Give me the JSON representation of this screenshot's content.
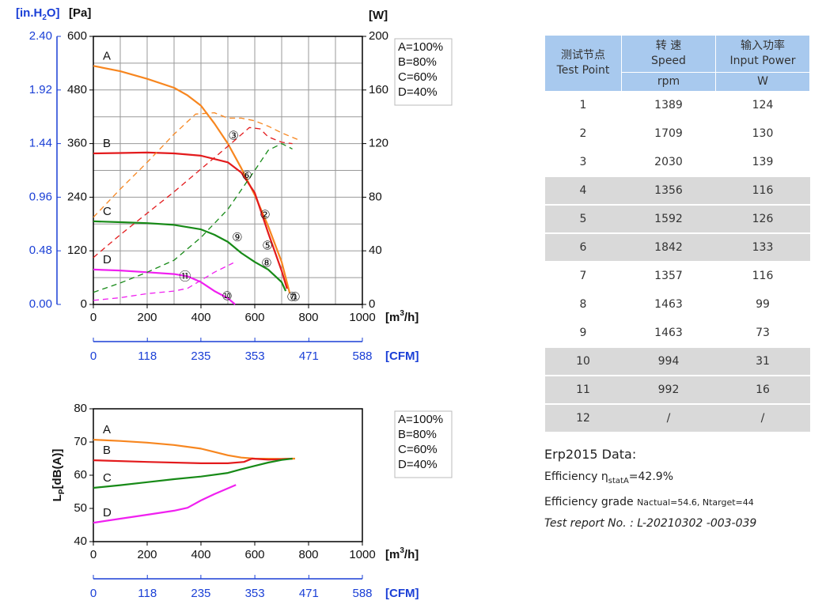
{
  "chart_data": [
    {
      "type": "line",
      "x_label": [
        "[m",
        "3",
        "/h]"
      ],
      "xlim": [
        0,
        1000
      ],
      "xticks": [
        0,
        200,
        400,
        600,
        800,
        1000
      ],
      "x2_label": "[CFM]",
      "x2lim": [
        0,
        588
      ],
      "x2ticks": [
        0,
        118,
        235,
        353,
        471,
        588
      ],
      "y_label": "[Pa]",
      "ylim": [
        0,
        600
      ],
      "yticks": [
        0,
        120,
        240,
        360,
        480,
        600
      ],
      "y3_label": [
        "[in.H",
        "2",
        "O]"
      ],
      "y3lim": [
        0,
        2.4
      ],
      "y3ticks": [
        {
          "value": 0,
          "label": "0.00"
        },
        0.48,
        0.96,
        1.44,
        1.92,
        {
          "value": 2.4,
          "label": "2.40"
        }
      ],
      "y2_label": "[W]",
      "y2lim": [
        0,
        200
      ],
      "y2ticks": [
        0,
        40,
        80,
        120,
        160,
        200
      ],
      "grid": true,
      "legend": "right",
      "series": [
        {
          "name": "A=100%",
          "label": "A",
          "color": "#f7861f",
          "x": [
            0,
            100,
            200,
            300,
            350,
            400,
            450,
            500,
            550,
            600,
            650,
            700,
            730
          ],
          "values": [
            534,
            522,
            505,
            485,
            468,
            445,
            405,
            360,
            305,
            245,
            175,
            95,
            25
          ]
        },
        {
          "name": "B=80%",
          "label": "B",
          "color": "#e31a1c",
          "x": [
            0,
            100,
            200,
            300,
            400,
            500,
            550,
            600,
            650,
            700,
            720
          ],
          "values": [
            338,
            339,
            340,
            338,
            333,
            318,
            295,
            250,
            160,
            75,
            35
          ]
        },
        {
          "name": "C=60%",
          "label": "C",
          "color": "#178a17",
          "x": [
            0,
            100,
            200,
            300,
            400,
            450,
            500,
            550,
            600,
            650,
            700,
            715
          ],
          "values": [
            186,
            184,
            182,
            178,
            168,
            156,
            140,
            115,
            95,
            78,
            50,
            30
          ]
        },
        {
          "name": "D=40%",
          "label": "D",
          "color": "#f020f0",
          "x": [
            0,
            100,
            200,
            300,
            350,
            400,
            450,
            500,
            527
          ],
          "values": [
            78,
            76,
            72,
            68,
            63,
            50,
            30,
            14,
            0
          ]
        },
        {
          "axis": "y2",
          "dashed": true,
          "color": "#f7861f",
          "x": [
            0,
            100,
            200,
            300,
            380,
            450,
            500,
            550,
            600,
            650,
            700,
            760
          ],
          "values": [
            65,
            86,
            106,
            127,
            142,
            143,
            139,
            139,
            137,
            133,
            128,
            123
          ]
        },
        {
          "axis": "y2",
          "dashed": true,
          "color": "#e31a1c",
          "x": [
            0,
            100,
            200,
            300,
            400,
            500,
            580,
            620,
            650,
            700,
            740
          ],
          "values": [
            35,
            52,
            68,
            84,
            101,
            118,
            132,
            131,
            125,
            121,
            120
          ]
        },
        {
          "axis": "y2",
          "dashed": true,
          "color": "#178a17",
          "x": [
            0,
            100,
            200,
            300,
            400,
            500,
            600,
            650,
            700,
            720,
            740
          ],
          "values": [
            9,
            16,
            24,
            33,
            50,
            71,
            100,
            115,
            120,
            118,
            116
          ]
        },
        {
          "axis": "y2",
          "dashed": true,
          "color": "#f020f0",
          "x": [
            0,
            100,
            200,
            300,
            350,
            400,
            450,
            520
          ],
          "values": [
            3,
            5,
            8,
            10,
            12,
            18,
            24,
            31
          ]
        }
      ],
      "annotations": [
        {
          "text": "③",
          "x": 521,
          "y": 377
        },
        {
          "text": "⑥",
          "x": 571,
          "y": 288
        },
        {
          "text": "②",
          "x": 638,
          "y": 200
        },
        {
          "text": "⑤",
          "x": 647,
          "y": 131
        },
        {
          "text": "⑧",
          "x": 644,
          "y": 92
        },
        {
          "text": "⑨",
          "x": 535,
          "y": 150
        },
        {
          "text": "⑪",
          "x": 341,
          "y": 62
        },
        {
          "text": "⑩",
          "x": 497,
          "y": 18
        },
        {
          "text": "①",
          "x": 750,
          "y": 16
        },
        {
          "text": "⑦",
          "x": 738,
          "y": 16
        }
      ]
    },
    {
      "type": "line",
      "x_label": [
        "[m",
        "3",
        "/h]"
      ],
      "xlim": [
        0,
        1000
      ],
      "xticks": [
        0,
        200,
        400,
        600,
        800,
        1000
      ],
      "x2_label": "[CFM]",
      "x2lim": [
        0,
        588
      ],
      "x2ticks": [
        0,
        118,
        235,
        353,
        471,
        588
      ],
      "y_label": [
        "L",
        "P",
        "[dB(A)]"
      ],
      "ylim": [
        40,
        80
      ],
      "yticks": [
        40,
        50,
        60,
        70,
        80
      ],
      "grid": false,
      "legend": "right",
      "series": [
        {
          "name": "A=100%",
          "label": "A",
          "color": "#f7861f",
          "x": [
            0,
            100,
            200,
            300,
            400,
            450,
            500,
            550,
            600,
            700,
            750
          ],
          "values": [
            70.7,
            70.3,
            69.8,
            69.1,
            68.0,
            67.0,
            66.0,
            65.3,
            65.0,
            64.9,
            65.0
          ]
        },
        {
          "name": "B=80%",
          "label": "B",
          "color": "#e31a1c",
          "x": [
            0,
            200,
            400,
            500,
            560,
            590,
            650,
            700,
            740
          ],
          "values": [
            64.5,
            64.0,
            63.6,
            63.6,
            64.0,
            65.0,
            64.7,
            64.8,
            65.0
          ]
        },
        {
          "name": "C=60%",
          "label": "C",
          "color": "#178a17",
          "x": [
            0,
            100,
            200,
            300,
            400,
            500,
            550,
            600,
            650,
            700,
            740
          ],
          "values": [
            56.2,
            57.0,
            57.9,
            58.8,
            59.6,
            60.7,
            61.8,
            62.8,
            63.8,
            64.6,
            65.0
          ]
        },
        {
          "name": "D=40%",
          "label": "D",
          "color": "#f020f0",
          "x": [
            0,
            100,
            200,
            300,
            350,
            400,
            450,
            530
          ],
          "values": [
            45.7,
            46.9,
            48.1,
            49.3,
            50.2,
            52.4,
            54.3,
            57.1
          ]
        }
      ]
    }
  ],
  "table": {
    "columns": [
      {
        "cn": "测试节点",
        "en": "Test Point"
      },
      {
        "cn": "转 速",
        "en": "Speed",
        "unit": "rpm"
      },
      {
        "cn": "输入功率",
        "en": "Input Power",
        "unit": "W"
      }
    ],
    "rows": [
      [
        1,
        1389,
        124
      ],
      [
        2,
        1709,
        130
      ],
      [
        3,
        2030,
        139
      ],
      [
        4,
        1356,
        116
      ],
      [
        5,
        1592,
        126
      ],
      [
        6,
        1842,
        133
      ],
      [
        7,
        1357,
        116
      ],
      [
        8,
        1463,
        99
      ],
      [
        9,
        1463,
        73
      ],
      [
        10,
        994,
        31
      ],
      [
        11,
        992,
        16
      ],
      [
        12,
        "/",
        "/"
      ]
    ]
  },
  "erp": {
    "title": "Erp2015  Data:",
    "efficiency": [
      "Efficiency η",
      "statA",
      "=42.9%"
    ],
    "grade": [
      "Efficiency grade  ",
      "Nactual=54.6, Ntarget=44"
    ],
    "report": "Test report No. : L-20210302 -003-039"
  }
}
